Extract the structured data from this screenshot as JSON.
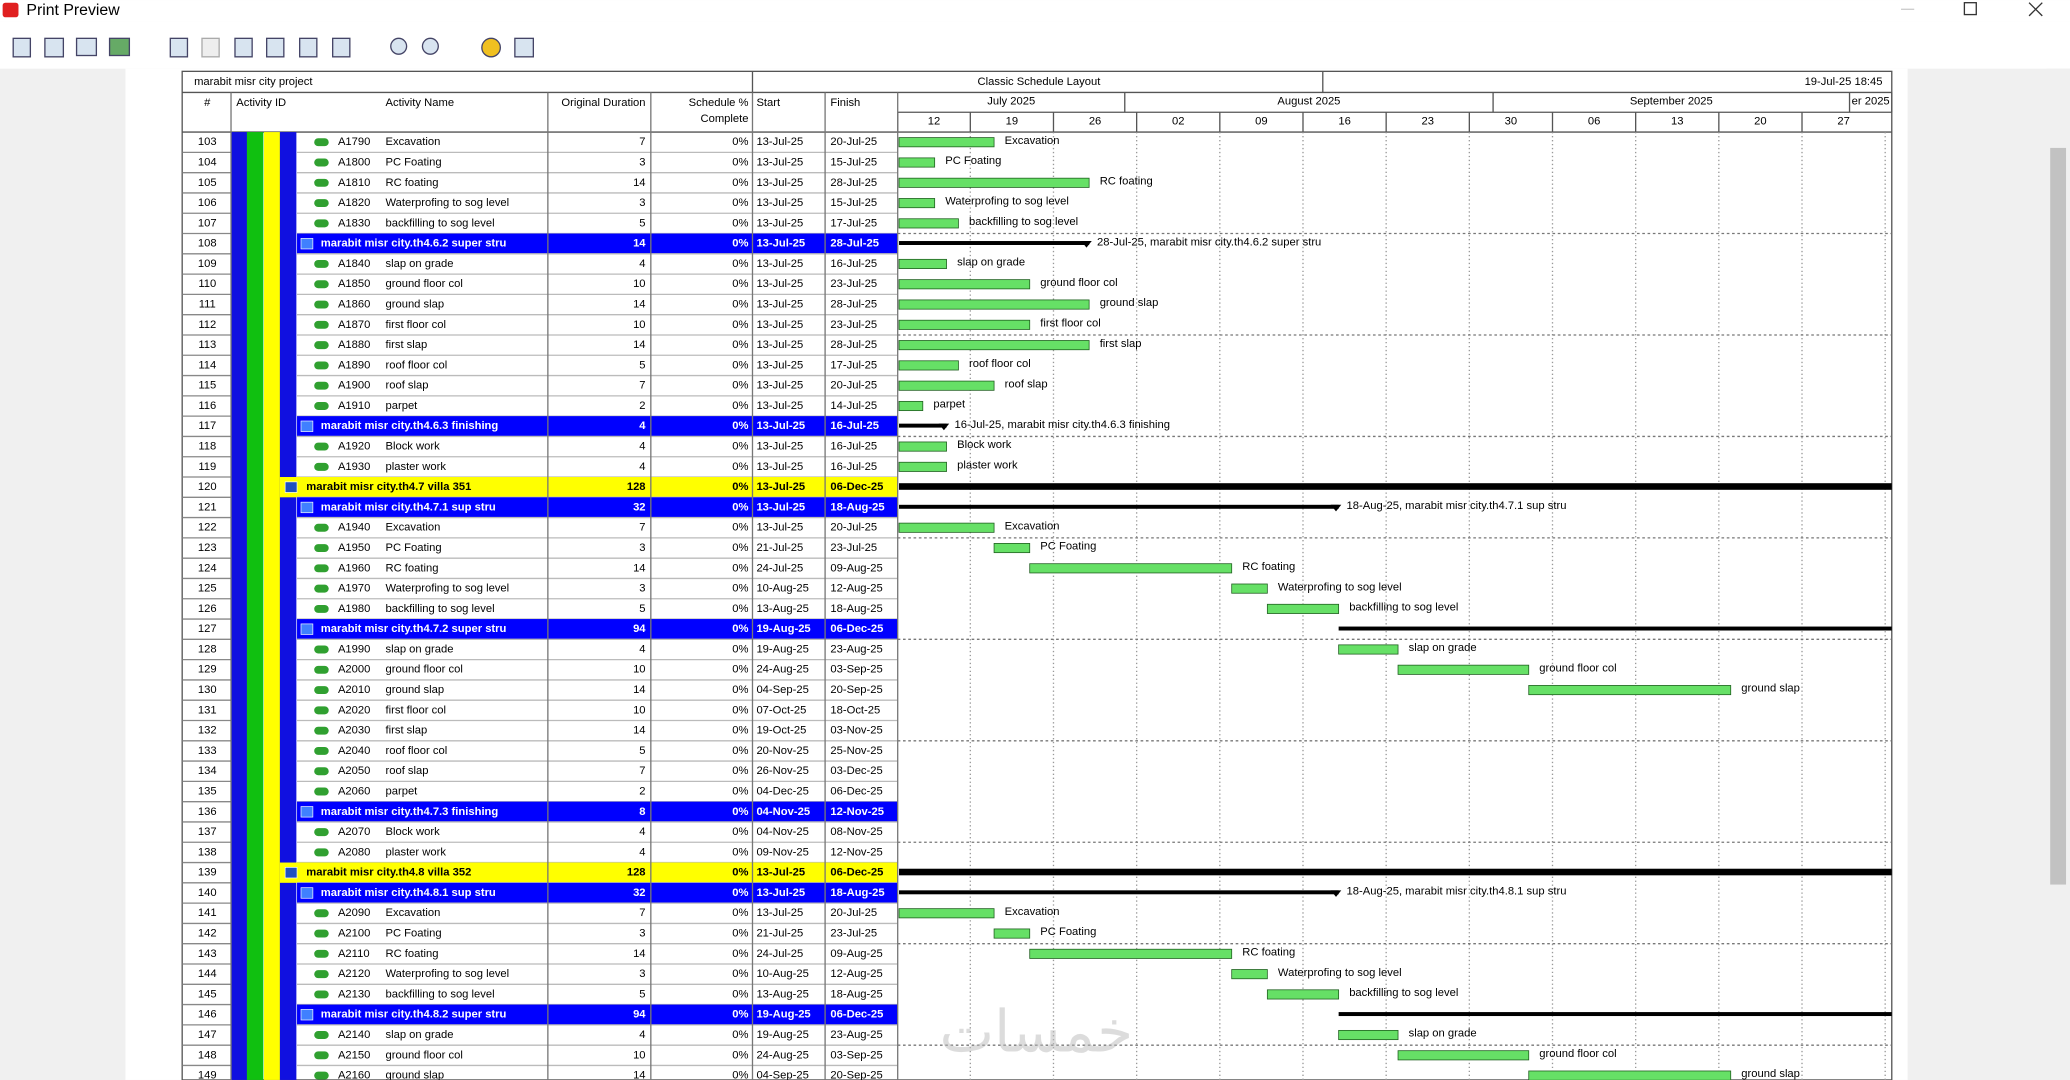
{
  "window": {
    "title": "Print Preview"
  },
  "header": {
    "project": "marabit misr city project",
    "layout": "Classic Schedule Layout",
    "printed": "19-Jul-25 18:45"
  },
  "columns": {
    "num": "#",
    "id": "Activity ID",
    "name": "Activity Name",
    "duration": "Original Duration",
    "complete": [
      "Schedule %",
      "Complete"
    ],
    "start": "Start",
    "finish": "Finish"
  },
  "timescale": {
    "months": [
      "July 2025",
      "August 2025",
      "September 2025",
      "er 2025"
    ],
    "weeks": [
      "12",
      "19",
      "26",
      "02",
      "09",
      "16",
      "23",
      "30",
      "06",
      "13",
      "20",
      "27"
    ]
  },
  "rows": [
    {
      "n": 103,
      "kind": "task",
      "id": "A1790",
      "name": "Excavation",
      "dur": 7,
      "pct": "0%",
      "start": "13-Jul-25",
      "finish": "20-Jul-25"
    },
    {
      "n": 104,
      "kind": "task",
      "id": "A1800",
      "name": "PC Foating",
      "dur": 3,
      "pct": "0%",
      "start": "13-Jul-25",
      "finish": "15-Jul-25"
    },
    {
      "n": 105,
      "kind": "task",
      "id": "A1810",
      "name": "RC foating",
      "dur": 14,
      "pct": "0%",
      "start": "13-Jul-25",
      "finish": "28-Jul-25"
    },
    {
      "n": 106,
      "kind": "task",
      "id": "A1820",
      "name": "Waterprofing to sog level",
      "dur": 3,
      "pct": "0%",
      "start": "13-Jul-25",
      "finish": "15-Jul-25"
    },
    {
      "n": 107,
      "kind": "task",
      "id": "A1830",
      "name": "backfilling to sog level",
      "dur": 5,
      "pct": "0%",
      "start": "13-Jul-25",
      "finish": "17-Jul-25"
    },
    {
      "n": 108,
      "kind": "wbs",
      "name": "marabit misr city.th4.6.2  super stru",
      "dur": 14,
      "pct": "0%",
      "start": "13-Jul-25",
      "finish": "28-Jul-25",
      "bar_label": "28-Jul-25, marabit misr city.th4.6.2  super stru"
    },
    {
      "n": 109,
      "kind": "task",
      "id": "A1840",
      "name": "slap on grade",
      "dur": 4,
      "pct": "0%",
      "start": "13-Jul-25",
      "finish": "16-Jul-25"
    },
    {
      "n": 110,
      "kind": "task",
      "id": "A1850",
      "name": "ground floor col",
      "dur": 10,
      "pct": "0%",
      "start": "13-Jul-25",
      "finish": "23-Jul-25"
    },
    {
      "n": 111,
      "kind": "task",
      "id": "A1860",
      "name": "ground slap",
      "dur": 14,
      "pct": "0%",
      "start": "13-Jul-25",
      "finish": "28-Jul-25"
    },
    {
      "n": 112,
      "kind": "task",
      "id": "A1870",
      "name": "first floor col",
      "dur": 10,
      "pct": "0%",
      "start": "13-Jul-25",
      "finish": "23-Jul-25"
    },
    {
      "n": 113,
      "kind": "task",
      "id": "A1880",
      "name": "first slap",
      "dur": 14,
      "pct": "0%",
      "start": "13-Jul-25",
      "finish": "28-Jul-25"
    },
    {
      "n": 114,
      "kind": "task",
      "id": "A1890",
      "name": "roof floor col",
      "dur": 5,
      "pct": "0%",
      "start": "13-Jul-25",
      "finish": "17-Jul-25"
    },
    {
      "n": 115,
      "kind": "task",
      "id": "A1900",
      "name": "roof slap",
      "dur": 7,
      "pct": "0%",
      "start": "13-Jul-25",
      "finish": "20-Jul-25"
    },
    {
      "n": 116,
      "kind": "task",
      "id": "A1910",
      "name": "parpet",
      "dur": 2,
      "pct": "0%",
      "start": "13-Jul-25",
      "finish": "14-Jul-25"
    },
    {
      "n": 117,
      "kind": "wbs",
      "name": "marabit misr city.th4.6.3  finishing",
      "dur": 4,
      "pct": "0%",
      "start": "13-Jul-25",
      "finish": "16-Jul-25",
      "bar_label": "16-Jul-25, marabit misr city.th4.6.3  finishing"
    },
    {
      "n": 118,
      "kind": "task",
      "id": "A1920",
      "name": "Block work",
      "dur": 4,
      "pct": "0%",
      "start": "13-Jul-25",
      "finish": "16-Jul-25"
    },
    {
      "n": 119,
      "kind": "task",
      "id": "A1930",
      "name": "plaster work",
      "dur": 4,
      "pct": "0%",
      "start": "13-Jul-25",
      "finish": "16-Jul-25"
    },
    {
      "n": 120,
      "kind": "group",
      "name": "marabit misr city.th4.7  villa  351",
      "dur": 128,
      "pct": "0%",
      "start": "13-Jul-25",
      "finish": "06-Dec-25"
    },
    {
      "n": 121,
      "kind": "wbs",
      "name": "marabit misr city.th4.7.1  sup stru",
      "dur": 32,
      "pct": "0%",
      "start": "13-Jul-25",
      "finish": "18-Aug-25",
      "bar_label": "18-Aug-25, marabit misr city.th4.7.1  sup stru"
    },
    {
      "n": 122,
      "kind": "task",
      "id": "A1940",
      "name": "Excavation",
      "dur": 7,
      "pct": "0%",
      "start": "13-Jul-25",
      "finish": "20-Jul-25"
    },
    {
      "n": 123,
      "kind": "task",
      "id": "A1950",
      "name": "PC Foating",
      "dur": 3,
      "pct": "0%",
      "start": "21-Jul-25",
      "finish": "23-Jul-25"
    },
    {
      "n": 124,
      "kind": "task",
      "id": "A1960",
      "name": "RC foating",
      "dur": 14,
      "pct": "0%",
      "start": "24-Jul-25",
      "finish": "09-Aug-25"
    },
    {
      "n": 125,
      "kind": "task",
      "id": "A1970",
      "name": "Waterprofing to sog level",
      "dur": 3,
      "pct": "0%",
      "start": "10-Aug-25",
      "finish": "12-Aug-25"
    },
    {
      "n": 126,
      "kind": "task",
      "id": "A1980",
      "name": "backfilling to sog level",
      "dur": 5,
      "pct": "0%",
      "start": "13-Aug-25",
      "finish": "18-Aug-25"
    },
    {
      "n": 127,
      "kind": "wbs",
      "name": "marabit misr city.th4.7.2  super stru",
      "dur": 94,
      "pct": "0%",
      "start": "19-Aug-25",
      "finish": "06-Dec-25"
    },
    {
      "n": 128,
      "kind": "task",
      "id": "A1990",
      "name": "slap on grade",
      "dur": 4,
      "pct": "0%",
      "start": "19-Aug-25",
      "finish": "23-Aug-25"
    },
    {
      "n": 129,
      "kind": "task",
      "id": "A2000",
      "name": "ground floor col",
      "dur": 10,
      "pct": "0%",
      "start": "24-Aug-25",
      "finish": "03-Sep-25"
    },
    {
      "n": 130,
      "kind": "task",
      "id": "A2010",
      "name": "ground slap",
      "dur": 14,
      "pct": "0%",
      "start": "04-Sep-25",
      "finish": "20-Sep-25"
    },
    {
      "n": 131,
      "kind": "task",
      "id": "A2020",
      "name": "first floor col",
      "dur": 10,
      "pct": "0%",
      "start": "07-Oct-25",
      "finish": "18-Oct-25"
    },
    {
      "n": 132,
      "kind": "task",
      "id": "A2030",
      "name": "first slap",
      "dur": 14,
      "pct": "0%",
      "start": "19-Oct-25",
      "finish": "03-Nov-25"
    },
    {
      "n": 133,
      "kind": "task",
      "id": "A2040",
      "name": "roof floor col",
      "dur": 5,
      "pct": "0%",
      "start": "20-Nov-25",
      "finish": "25-Nov-25"
    },
    {
      "n": 134,
      "kind": "task",
      "id": "A2050",
      "name": "roof slap",
      "dur": 7,
      "pct": "0%",
      "start": "26-Nov-25",
      "finish": "03-Dec-25"
    },
    {
      "n": 135,
      "kind": "task",
      "id": "A2060",
      "name": "parpet",
      "dur": 2,
      "pct": "0%",
      "start": "04-Dec-25",
      "finish": "06-Dec-25"
    },
    {
      "n": 136,
      "kind": "wbs",
      "name": "marabit misr city.th4.7.3  finishing",
      "dur": 8,
      "pct": "0%",
      "start": "04-Nov-25",
      "finish": "12-Nov-25"
    },
    {
      "n": 137,
      "kind": "task",
      "id": "A2070",
      "name": "Block work",
      "dur": 4,
      "pct": "0%",
      "start": "04-Nov-25",
      "finish": "08-Nov-25"
    },
    {
      "n": 138,
      "kind": "task",
      "id": "A2080",
      "name": "plaster work",
      "dur": 4,
      "pct": "0%",
      "start": "09-Nov-25",
      "finish": "12-Nov-25"
    },
    {
      "n": 139,
      "kind": "group",
      "name": "marabit misr city.th4.8  villa  352",
      "dur": 128,
      "pct": "0%",
      "start": "13-Jul-25",
      "finish": "06-Dec-25"
    },
    {
      "n": 140,
      "kind": "wbs",
      "name": "marabit misr city.th4.8.1  sup stru",
      "dur": 32,
      "pct": "0%",
      "start": "13-Jul-25",
      "finish": "18-Aug-25",
      "bar_label": "18-Aug-25, marabit misr city.th4.8.1  sup stru"
    },
    {
      "n": 141,
      "kind": "task",
      "id": "A2090",
      "name": "Excavation",
      "dur": 7,
      "pct": "0%",
      "start": "13-Jul-25",
      "finish": "20-Jul-25"
    },
    {
      "n": 142,
      "kind": "task",
      "id": "A2100",
      "name": "PC Foating",
      "dur": 3,
      "pct": "0%",
      "start": "21-Jul-25",
      "finish": "23-Jul-25"
    },
    {
      "n": 143,
      "kind": "task",
      "id": "A2110",
      "name": "RC foating",
      "dur": 14,
      "pct": "0%",
      "start": "24-Jul-25",
      "finish": "09-Aug-25"
    },
    {
      "n": 144,
      "kind": "task",
      "id": "A2120",
      "name": "Waterprofing to sog level",
      "dur": 3,
      "pct": "0%",
      "start": "10-Aug-25",
      "finish": "12-Aug-25"
    },
    {
      "n": 145,
      "kind": "task",
      "id": "A2130",
      "name": "backfilling to sog level",
      "dur": 5,
      "pct": "0%",
      "start": "13-Aug-25",
      "finish": "18-Aug-25"
    },
    {
      "n": 146,
      "kind": "wbs",
      "name": "marabit misr city.th4.8.2  super stru",
      "dur": 94,
      "pct": "0%",
      "start": "19-Aug-25",
      "finish": "06-Dec-25"
    },
    {
      "n": 147,
      "kind": "task",
      "id": "A2140",
      "name": "slap on grade",
      "dur": 4,
      "pct": "0%",
      "start": "19-Aug-25",
      "finish": "23-Aug-25"
    },
    {
      "n": 148,
      "kind": "task",
      "id": "A2150",
      "name": "ground floor col",
      "dur": 10,
      "pct": "0%",
      "start": "24-Aug-25",
      "finish": "03-Sep-25"
    },
    {
      "n": 149,
      "kind": "task",
      "id": "A2160",
      "name": "ground slap",
      "dur": 14,
      "pct": "0%",
      "start": "04-Sep-25",
      "finish": "20-Sep-25"
    }
  ],
  "watermark": "خمسات"
}
